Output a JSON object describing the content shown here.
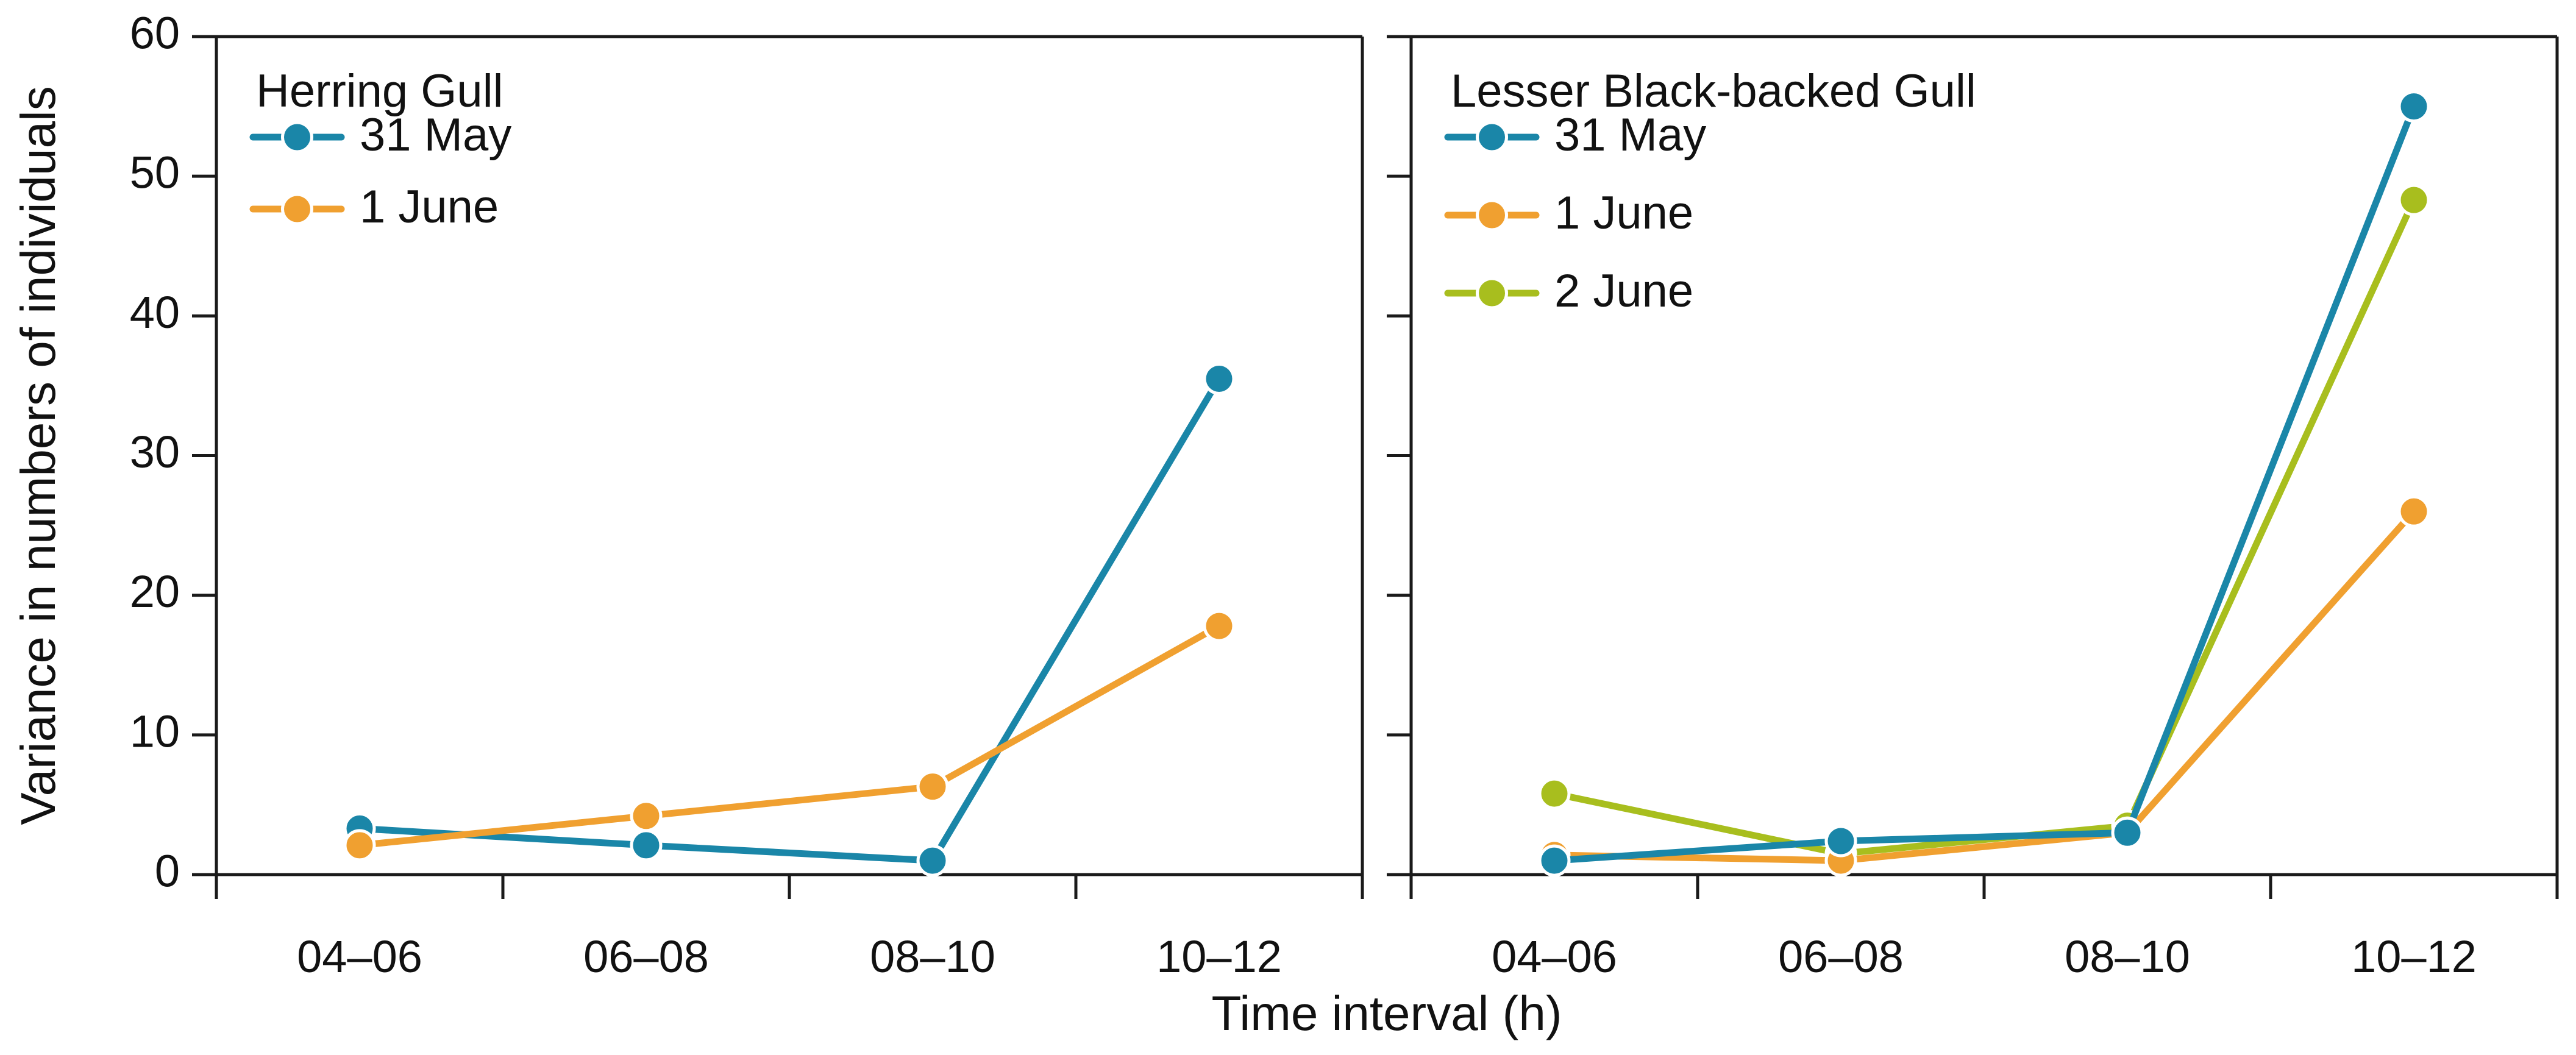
{
  "chart_data": {
    "type": "line",
    "ylabel": "Variance in numbers of individuals",
    "xlabel": "Time interval (h)",
    "ylim": [
      0,
      60
    ],
    "yticks": [
      0,
      10,
      20,
      30,
      40,
      50,
      60
    ],
    "categories": [
      "04–06",
      "06–08",
      "08–10",
      "10–12"
    ],
    "grid": false,
    "panels": [
      {
        "title": "Herring Gull",
        "legend_position": "top-left",
        "series": [
          {
            "name": "31 May",
            "color": "#1a86a8",
            "values": [
              3.3,
              2.1,
              1.0,
              35.5
            ]
          },
          {
            "name": "1 June",
            "color": "#f0a030",
            "values": [
              2.1,
              4.2,
              6.3,
              17.8
            ]
          }
        ]
      },
      {
        "title": "Lesser Black-backed Gull",
        "legend_position": "top-left",
        "series": [
          {
            "name": "2 June",
            "color": "#a8be1e",
            "values": [
              5.8,
              1.5,
              3.5,
              48.3
            ]
          },
          {
            "name": "1 June",
            "color": "#f0a030",
            "values": [
              1.4,
              1.0,
              3.0,
              26.0
            ]
          },
          {
            "name": "31 May",
            "color": "#1a86a8",
            "values": [
              1.0,
              2.4,
              3.0,
              55.0
            ]
          }
        ]
      }
    ]
  }
}
